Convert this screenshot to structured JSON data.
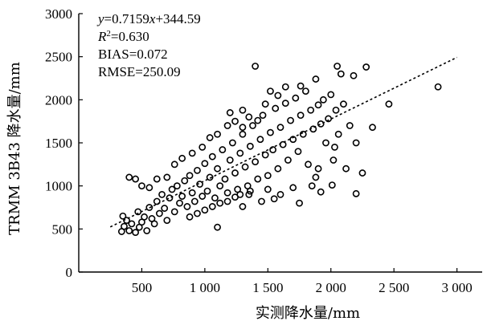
{
  "chart_data": {
    "type": "scatter",
    "xlabel": "实测降水量/mm",
    "ylabel": "TRMM 3B43 降水量/mm",
    "xlim": [
      0,
      3200
    ],
    "ylim": [
      0,
      3000
    ],
    "x_ticks": [
      500,
      1000,
      1500,
      2000,
      2500,
      3000
    ],
    "x_tick_labels": [
      "500",
      "1 000",
      "1 500",
      "2 000",
      "2 500",
      "3 000"
    ],
    "y_ticks": [
      0,
      500,
      1000,
      1500,
      2000,
      2500,
      3000
    ],
    "y_tick_labels": [
      "0",
      "500",
      "1000",
      "1500",
      "2000",
      "2500",
      "3000"
    ],
    "grid": false,
    "fit": {
      "slope": 0.7159,
      "intercept": 344.59,
      "x_range": [
        250,
        3000
      ],
      "style": "dashed"
    },
    "annotations": {
      "eq_y": "y",
      "eq_rest": "=0.7159",
      "eq_x": "x",
      "eq_tail": "+344.59",
      "r2_R": "R",
      "r2_sup": "2",
      "r2_val": "=0.630",
      "bias": "BIAS=0.072",
      "rmse": "RMSE=250.09"
    },
    "points": [
      [
        340,
        470
      ],
      [
        360,
        530
      ],
      [
        380,
        600
      ],
      [
        350,
        650
      ],
      [
        400,
        480
      ],
      [
        420,
        560
      ],
      [
        450,
        460
      ],
      [
        470,
        700
      ],
      [
        480,
        520
      ],
      [
        500,
        580
      ],
      [
        520,
        640
      ],
      [
        540,
        480
      ],
      [
        560,
        750
      ],
      [
        580,
        620
      ],
      [
        600,
        560
      ],
      [
        620,
        820
      ],
      [
        640,
        680
      ],
      [
        660,
        900
      ],
      [
        680,
        740
      ],
      [
        700,
        600
      ],
      [
        720,
        860
      ],
      [
        740,
        960
      ],
      [
        760,
        700
      ],
      [
        780,
        1000
      ],
      [
        800,
        800
      ],
      [
        820,
        880
      ],
      [
        840,
        1060
      ],
      [
        860,
        760
      ],
      [
        880,
        1120
      ],
      [
        900,
        920
      ],
      [
        920,
        820
      ],
      [
        940,
        1180
      ],
      [
        960,
        1020
      ],
      [
        980,
        880
      ],
      [
        1000,
        1260
      ],
      [
        1020,
        940
      ],
      [
        1040,
        1100
      ],
      [
        1060,
        1340
      ],
      [
        1080,
        860
      ],
      [
        1100,
        1200
      ],
      [
        1120,
        1000
      ],
      [
        1140,
        1420
      ],
      [
        1160,
        1080
      ],
      [
        1180,
        920
      ],
      [
        1200,
        1300
      ],
      [
        1220,
        1500
      ],
      [
        1240,
        1150
      ],
      [
        1260,
        960
      ],
      [
        1280,
        1380
      ],
      [
        1300,
        1600
      ],
      [
        1320,
        1220
      ],
      [
        1340,
        1000
      ],
      [
        1360,
        1460
      ],
      [
        1380,
        1700
      ],
      [
        1400,
        1280
      ],
      [
        1420,
        1080
      ],
      [
        1440,
        1540
      ],
      [
        1460,
        1820
      ],
      [
        1480,
        1360
      ],
      [
        1500,
        1120
      ],
      [
        1520,
        1620
      ],
      [
        1540,
        1420
      ],
      [
        1560,
        1900
      ],
      [
        1580,
        1200
      ],
      [
        1600,
        1680
      ],
      [
        1620,
        1480
      ],
      [
        1640,
        1960
      ],
      [
        1660,
        1300
      ],
      [
        1680,
        1760
      ],
      [
        1700,
        1540
      ],
      [
        1720,
        2020
      ],
      [
        1740,
        1400
      ],
      [
        1760,
        1820
      ],
      [
        1780,
        1600
      ],
      [
        1800,
        2100
      ],
      [
        1820,
        1250
      ],
      [
        1840,
        1880
      ],
      [
        1860,
        1660
      ],
      [
        1880,
        1100
      ],
      [
        1900,
        1940
      ],
      [
        1920,
        1720
      ],
      [
        1940,
        2000
      ],
      [
        1960,
        1500
      ],
      [
        1980,
        1780
      ],
      [
        2000,
        2060
      ],
      [
        2020,
        1300
      ],
      [
        2040,
        1880
      ],
      [
        2060,
        1600
      ],
      [
        2080,
        2300
      ],
      [
        2100,
        1950
      ],
      [
        2120,
        1200
      ],
      [
        2150,
        1700
      ],
      [
        2180,
        2280
      ],
      [
        2200,
        1500
      ],
      [
        2250,
        1150
      ],
      [
        2280,
        2380
      ],
      [
        2330,
        1680
      ],
      [
        2460,
        1950
      ],
      [
        2850,
        2150
      ],
      [
        1400,
        2390
      ],
      [
        400,
        1100
      ],
      [
        450,
        1080
      ],
      [
        500,
        1000
      ],
      [
        560,
        980
      ],
      [
        620,
        1080
      ],
      [
        700,
        1100
      ],
      [
        1100,
        520
      ],
      [
        2010,
        1010
      ],
      [
        1920,
        930
      ],
      [
        2200,
        910
      ],
      [
        1300,
        760
      ],
      [
        1350,
        900
      ],
      [
        1450,
        820
      ],
      [
        1550,
        850
      ],
      [
        1600,
        900
      ],
      [
        1700,
        980
      ],
      [
        1750,
        800
      ],
      [
        1850,
        1000
      ],
      [
        1900,
        1200
      ],
      [
        2030,
        1450
      ],
      [
        1880,
        2240
      ],
      [
        1760,
        2160
      ],
      [
        1520,
        2100
      ],
      [
        1640,
        2150
      ],
      [
        2050,
        2390
      ],
      [
        1200,
        1850
      ],
      [
        1300,
        1880
      ],
      [
        1350,
        1800
      ],
      [
        1480,
        1950
      ],
      [
        1580,
        2050
      ],
      [
        760,
        1250
      ],
      [
        820,
        1320
      ],
      [
        900,
        1380
      ],
      [
        980,
        1450
      ],
      [
        1040,
        1560
      ],
      [
        1100,
        1600
      ],
      [
        1180,
        1700
      ],
      [
        1240,
        1750
      ],
      [
        1300,
        1680
      ],
      [
        1420,
        1760
      ],
      [
        880,
        640
      ],
      [
        940,
        680
      ],
      [
        1000,
        720
      ],
      [
        1060,
        760
      ],
      [
        1120,
        800
      ],
      [
        1180,
        820
      ],
      [
        1240,
        870
      ],
      [
        1280,
        900
      ],
      [
        1360,
        940
      ],
      [
        1500,
        960
      ]
    ]
  }
}
